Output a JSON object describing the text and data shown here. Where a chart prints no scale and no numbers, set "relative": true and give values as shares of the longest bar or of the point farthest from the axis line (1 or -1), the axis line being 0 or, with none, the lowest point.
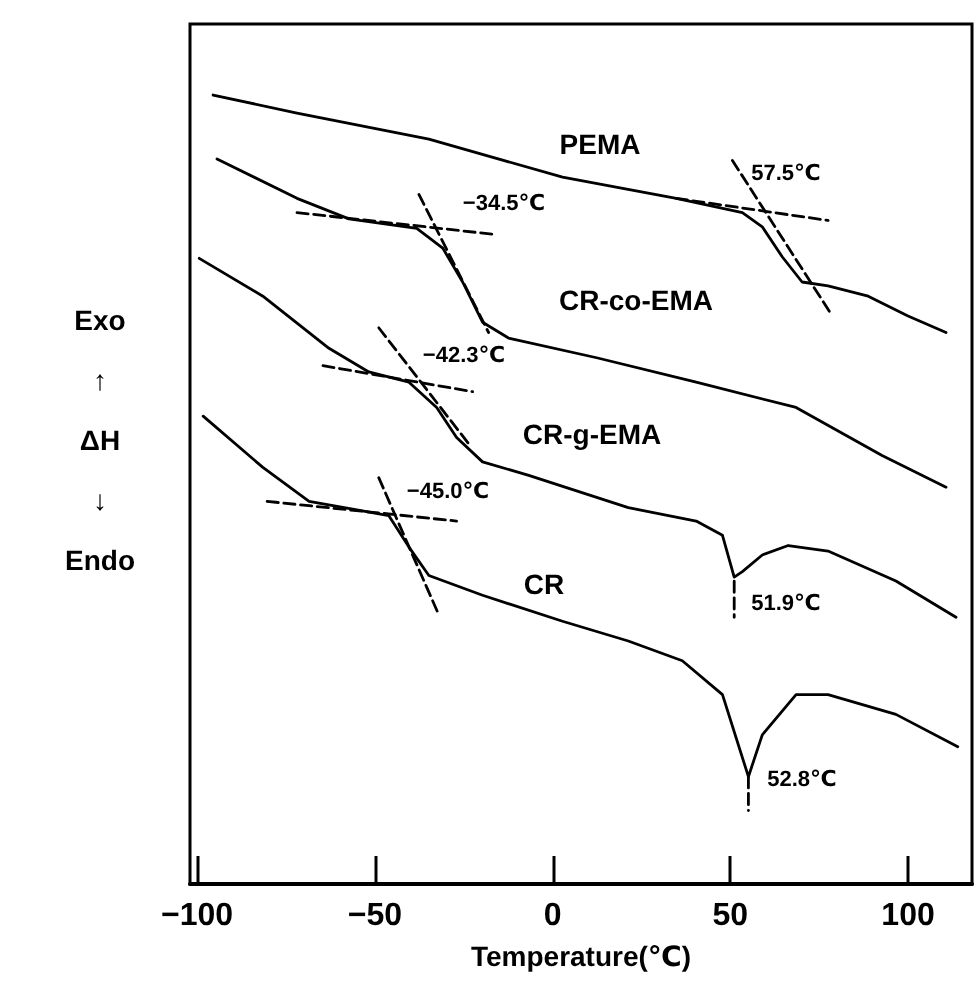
{
  "chart_data": {
    "type": "line",
    "relative": true,
    "xlabel": "Temperature(℃)",
    "ylabel": "Exo\n↑\nΔH\n↓\nEndo",
    "xlim": [
      -102,
      118
    ],
    "xticks": [
      -100,
      -50,
      0,
      50,
      100
    ],
    "grid": false,
    "legend": false,
    "marker": "none",
    "line_style": "solid",
    "series": [
      {
        "name": "PEMA",
        "color": "#000000",
        "x": [
          -95.5,
          -71.9,
          -34.8,
          2.8,
          34.8,
          53.4,
          59,
          64.6,
          70.2,
          77.5,
          88.8,
          100,
          110.7
        ],
        "values": [
          1,
          0.977,
          0.944,
          0.896,
          0.869,
          0.851,
          0.833,
          0.795,
          0.763,
          0.758,
          0.745,
          0.72,
          0.699
        ]
      },
      {
        "name": "CR-co-EMA",
        "color": "#000000",
        "x": [
          -94.4,
          -71.9,
          -57.3,
          -38.2,
          -30.9,
          -25.3,
          -19.7,
          -12.4,
          12.4,
          40.4,
          68.5,
          92.7,
          110.7
        ],
        "values": [
          0.919,
          0.869,
          0.843,
          0.831,
          0.806,
          0.763,
          0.712,
          0.692,
          0.667,
          0.636,
          0.604,
          0.543,
          0.503
        ]
      },
      {
        "name": "CR-g-EMA",
        "color": "#000000",
        "x": [
          -99.4,
          -81.5,
          -62.9,
          -51.7,
          -40.4,
          -32.6,
          -27,
          -19.7,
          -6.7,
          21.3,
          40.4,
          47.8,
          51.1,
          53.4,
          59,
          66.3,
          77.5,
          96.6,
          113.5
        ],
        "values": [
          0.793,
          0.745,
          0.679,
          0.649,
          0.636,
          0.604,
          0.566,
          0.535,
          0.518,
          0.477,
          0.46,
          0.442,
          0.389,
          0.396,
          0.417,
          0.429,
          0.422,
          0.384,
          0.338
        ]
      },
      {
        "name": "CR",
        "color": "#000000",
        "x": [
          -98.3,
          -81.5,
          -68.5,
          -46.1,
          -40.4,
          -34.8,
          -19.7,
          2.8,
          21.3,
          36.5,
          47.8,
          55.1,
          59,
          68.5,
          77.5,
          96.6,
          114
        ],
        "values": [
          0.593,
          0.528,
          0.485,
          0.467,
          0.427,
          0.391,
          0.366,
          0.333,
          0.308,
          0.283,
          0.24,
          0.136,
          0.189,
          0.24,
          0.24,
          0.215,
          0.174
        ]
      },
      {
        "color": "#000000",
        "line_style": "dashed",
        "x": [
          34.8,
          77.5
        ],
        "values": [
          0.869,
          0.841
        ]
      },
      {
        "color": "#000000",
        "line_style": "dashed",
        "x": [
          50.6,
          78.7
        ],
        "values": [
          0.917,
          0.72
        ]
      },
      {
        "color": "#000000",
        "line_style": "dashed",
        "x": [
          -71.9,
          -15.7
        ],
        "values": [
          0.851,
          0.823
        ]
      },
      {
        "color": "#000000",
        "line_style": "dashed",
        "x": [
          -37.6,
          -18
        ],
        "values": [
          0.874,
          0.699
        ]
      },
      {
        "color": "#000000",
        "line_style": "dashed",
        "x": [
          -64.6,
          -22.5
        ],
        "values": [
          0.657,
          0.624
        ]
      },
      {
        "color": "#000000",
        "line_style": "dashed",
        "x": [
          -48.9,
          -23.6
        ],
        "values": [
          0.705,
          0.558
        ]
      },
      {
        "color": "#000000",
        "line_style": "dashed",
        "x": [
          -80.3,
          -27
        ],
        "values": [
          0.485,
          0.46
        ]
      },
      {
        "color": "#000000",
        "line_style": "dashed",
        "x": [
          -48.9,
          -32
        ],
        "values": [
          0.515,
          0.341
        ]
      },
      {
        "color": "#000000",
        "line_style": "dashed",
        "x": [
          51.1,
          51.1
        ],
        "values": [
          0.384,
          0.338
        ]
      },
      {
        "color": "#000000",
        "line_style": "dashed",
        "x": [
          55.1,
          55.1
        ],
        "values": [
          0.136,
          0.093
        ]
      }
    ],
    "annotations": [
      "57.5℃",
      "−34.5℃",
      "−42.3℃",
      "−45.0℃",
      "51.9℃",
      "52.8℃"
    ]
  }
}
